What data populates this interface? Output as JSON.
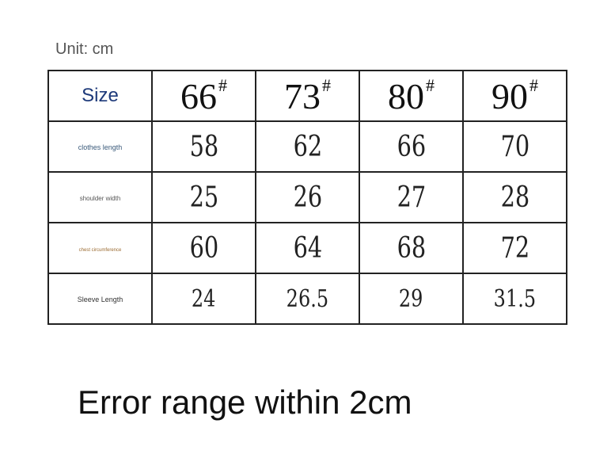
{
  "unit_label": "Unit: cm",
  "table": {
    "header_label": "Size",
    "sizes": [
      "66",
      "73",
      "80",
      "90"
    ],
    "size_mark": "#",
    "rows": [
      {
        "label": "clothes length",
        "color": "#3a5a7a",
        "values": [
          "58",
          "62",
          "66",
          "70"
        ]
      },
      {
        "label": "shoulder width",
        "color": "#555555",
        "values": [
          "25",
          "26",
          "27",
          "28"
        ]
      },
      {
        "label": "chest circumference",
        "color": "#9a6a30",
        "values": [
          "60",
          "64",
          "68",
          "72"
        ]
      },
      {
        "label": "Sleeve Length",
        "color": "#333333",
        "values": [
          "24",
          "26.5",
          "29",
          "31.5"
        ]
      }
    ]
  },
  "footer_note": "Error range within 2cm"
}
